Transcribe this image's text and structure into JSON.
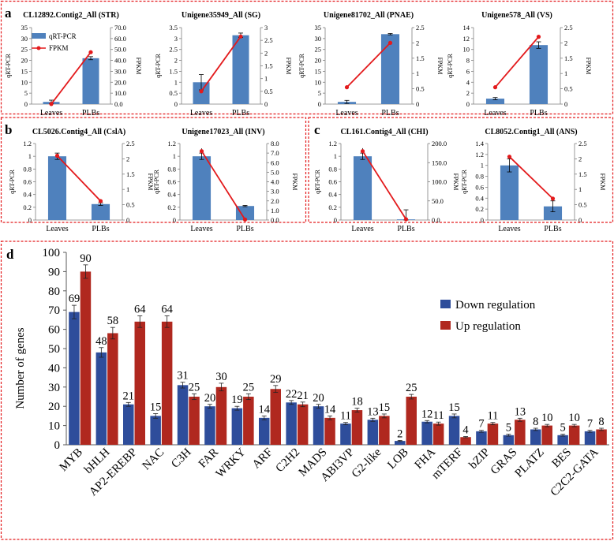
{
  "colors": {
    "bar": "#4f81bd",
    "line": "#e31a1c",
    "down": "#2e4d9b",
    "up": "#b0281f",
    "frame": "#e31a1c",
    "axis": "#7f7f7f"
  },
  "panel_labels": [
    "a",
    "b",
    "c",
    "d"
  ],
  "small_legend": {
    "bar_label": "qRT-PCR",
    "line_label": "FPKM"
  },
  "axis_labels": {
    "left": "qRT-PCR",
    "right": "FPKM"
  },
  "chart_data": [
    {
      "id": "a1",
      "panel": "a",
      "type": "bar+line",
      "title": "CL12892.Contig2_All (STR)",
      "categories": [
        "Leaves",
        "PLBs"
      ],
      "qpcr": [
        1,
        21
      ],
      "qpcr_err": [
        0.8,
        0.7
      ],
      "fpkm": [
        0.1,
        47.5
      ],
      "left_ticks": [
        "0",
        "5",
        "10",
        "15",
        "20",
        "25",
        "30",
        "35"
      ],
      "left_max": 35,
      "right_ticks": [
        "0.0",
        "10.0",
        "20.0",
        "30.0",
        "40.0",
        "50.0",
        "60.0",
        "70.0"
      ],
      "right_max": 70,
      "fpkm_err": [
        0,
        0
      ]
    },
    {
      "id": "a2",
      "panel": "a",
      "type": "bar+line",
      "title": "Unigene35949_All (SG)",
      "categories": [
        "Leaves",
        "PLBs"
      ],
      "qpcr": [
        1,
        3.15
      ],
      "qpcr_err": [
        0.35,
        0.1
      ],
      "fpkm": [
        0.5,
        2.65
      ],
      "left_ticks": [
        "0",
        "0.5",
        "1",
        "1.5",
        "2",
        "2.5",
        "3",
        "3.5"
      ],
      "left_max": 3.5,
      "right_ticks": [
        "0",
        "0.5",
        "1",
        "1.5",
        "2",
        "2.5",
        "3"
      ],
      "right_max": 3,
      "fpkm_err": [
        0,
        0
      ]
    },
    {
      "id": "a3",
      "panel": "a",
      "type": "bar+line",
      "title": "Unigene81702_All (PNAE)",
      "categories": [
        "Leaves",
        "PLBs"
      ],
      "qpcr": [
        1,
        32
      ],
      "qpcr_err": [
        0.7,
        0.3
      ],
      "fpkm": [
        0.55,
        2
      ],
      "left_ticks": [
        "0",
        "5",
        "10",
        "15",
        "20",
        "25",
        "30",
        "35"
      ],
      "left_max": 35,
      "right_ticks": [
        "0",
        "0.5",
        "1",
        "1.5",
        "2",
        "2.5"
      ],
      "right_max": 2.5,
      "fpkm_err": [
        0,
        0
      ]
    },
    {
      "id": "a4",
      "panel": "a",
      "type": "bar+line",
      "title": "Unigene578_All (VS)",
      "categories": [
        "Leaves",
        "PLBs"
      ],
      "qpcr": [
        1,
        10.8
      ],
      "qpcr_err": [
        0.2,
        0.6
      ],
      "fpkm": [
        0.55,
        2.2
      ],
      "left_ticks": [
        "0",
        "2",
        "4",
        "6",
        "8",
        "10",
        "12",
        "14"
      ],
      "left_max": 14,
      "right_ticks": [
        "0",
        "0.5",
        "1",
        "1.5",
        "2",
        "2.5"
      ],
      "right_max": 2.5,
      "fpkm_err": [
        0,
        0
      ]
    },
    {
      "id": "b1",
      "panel": "b",
      "type": "bar+line",
      "title": "CL5026.Contig4_All (CslA)",
      "categories": [
        "Leaves",
        "PLBs"
      ],
      "qpcr": [
        1,
        0.25
      ],
      "qpcr_err": [
        0.05,
        0.02
      ],
      "fpkm": [
        2.1,
        0.62
      ],
      "left_ticks": [
        "0",
        "0.2",
        "0.4",
        "0.6",
        "0.8",
        "1",
        "1.2"
      ],
      "left_max": 1.2,
      "right_ticks": [
        "0",
        "0.5",
        "1",
        "1.5",
        "2",
        "2.5"
      ],
      "right_max": 2.5,
      "fpkm_err": [
        0,
        0
      ]
    },
    {
      "id": "b2",
      "panel": "b",
      "type": "bar+line",
      "title": "Unigene17023_All (INV)",
      "categories": [
        "Leaves",
        "PLBs"
      ],
      "qpcr": [
        1,
        0.22
      ],
      "qpcr_err": [
        0.05,
        0.01
      ],
      "fpkm": [
        7.2,
        0.05
      ],
      "left_ticks": [
        "0",
        "0.2",
        "0.4",
        "0.6",
        "0.8",
        "1",
        "1.2"
      ],
      "left_max": 1.2,
      "right_ticks": [
        "0.0",
        "1.0",
        "2.0",
        "3.0",
        "4.0",
        "5.0",
        "6.0",
        "7.0",
        "8.0"
      ],
      "right_max": 8,
      "fpkm_err": [
        0.3,
        0
      ]
    },
    {
      "id": "c1",
      "panel": "c",
      "type": "bar+line",
      "title": "CL161.Contig4_All (CHI)",
      "categories": [
        "Leaves",
        "PLBs"
      ],
      "qpcr": [
        1,
        0.01
      ],
      "qpcr_err": [
        0.05,
        0.15
      ],
      "fpkm": [
        180,
        2
      ],
      "left_ticks": [
        "0",
        "0.2",
        "0.4",
        "0.6",
        "0.8",
        "1",
        "1.2"
      ],
      "left_max": 1.2,
      "right_ticks": [
        "0.0",
        "50.0",
        "100.0",
        "150.0",
        "200.0"
      ],
      "right_max": 200,
      "fpkm_err": [
        8,
        0
      ]
    },
    {
      "id": "c2",
      "panel": "c",
      "type": "bar+line",
      "title": "CL8052.Contig1_All (ANS)",
      "categories": [
        "Leaves",
        "PLBs"
      ],
      "qpcr": [
        1,
        0.25
      ],
      "qpcr_err": [
        0.12,
        0.1
      ],
      "fpkm": [
        2.07,
        0.7
      ],
      "left_ticks": [
        "0",
        "0.2",
        "0.4",
        "0.6",
        "0.8",
        "1",
        "1.2",
        "1.4"
      ],
      "left_max": 1.4,
      "right_ticks": [
        "0",
        "0.5",
        "1",
        "1.5",
        "2",
        "2.5"
      ],
      "right_max": 2.5,
      "fpkm_err": [
        0,
        0
      ]
    },
    {
      "id": "d",
      "panel": "d",
      "type": "bar",
      "ylabel": "Number of genes",
      "ylim": [
        0,
        100
      ],
      "yticks": [
        "0",
        "10",
        "20",
        "30",
        "40",
        "50",
        "60",
        "70",
        "80",
        "90",
        "100"
      ],
      "categories": [
        "MYB",
        "bHLH",
        "AP2-EREBP",
        "NAC",
        "C3H",
        "FAR",
        "WRKY",
        "ARF",
        "C2H2",
        "MADS",
        "ABI3VP",
        "G2-like",
        "LOB",
        "FHA",
        "mTERF",
        "bZIP",
        "GRAS",
        "PLATZ",
        "BES",
        "C2C2-GATA"
      ],
      "series": [
        {
          "name": "Down regulation",
          "values": [
            69,
            48,
            21,
            15,
            31,
            20,
            19,
            14,
            22,
            20,
            11,
            13,
            2,
            12,
            15,
            7,
            5,
            8,
            5,
            7
          ]
        },
        {
          "name": "Up regulation",
          "values": [
            90,
            58,
            64,
            64,
            25,
            30,
            25,
            29,
            21,
            14,
            18,
            15,
            25,
            11,
            4,
            11,
            13,
            10,
            10,
            8
          ]
        }
      ],
      "errors": [
        [
          3.5,
          2.5,
          1.0,
          1.2,
          1.5,
          1.0,
          1.0,
          1.0,
          1.0,
          1.0,
          0.6,
          0.8,
          0.3,
          0.6,
          1.0,
          0.5,
          0.5,
          0.6,
          0.5,
          0.5
        ],
        [
          3.5,
          3.0,
          3.0,
          3.0,
          1.5,
          2.0,
          1.5,
          1.8,
          1.2,
          1.0,
          1.0,
          1.0,
          1.2,
          0.8,
          0.3,
          0.6,
          0.8,
          0.6,
          0.6,
          0.6
        ]
      ]
    }
  ]
}
